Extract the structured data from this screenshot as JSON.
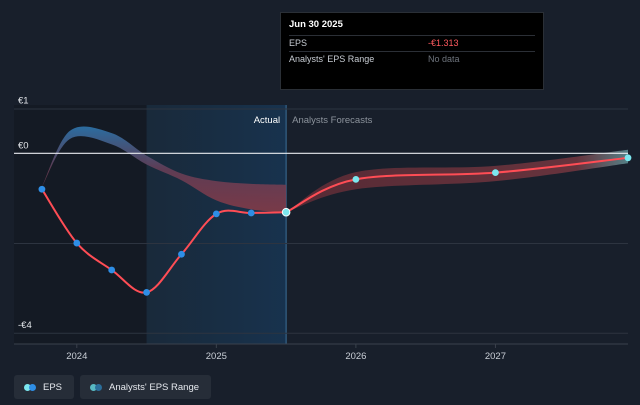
{
  "tooltip": {
    "date": "Jun 30 2025",
    "rows": [
      {
        "label": "EPS",
        "value": "-€1.313"
      },
      {
        "label": "Analysts' EPS Range",
        "value": "No data"
      }
    ]
  },
  "legend": {
    "items": [
      {
        "label": "EPS",
        "colors": [
          "#7ce7ef",
          "#2e8ee6"
        ]
      },
      {
        "label": "Analysts' EPS Range",
        "colors": [
          "#58b9c2",
          "#2b6e9a"
        ]
      }
    ]
  },
  "chart_data": {
    "type": "line",
    "y_ticks": [
      {
        "value": 1,
        "label": "€1"
      },
      {
        "value": 0,
        "label": "€0"
      },
      {
        "value": -4,
        "label": "-€4"
      }
    ],
    "x_ticks": [
      {
        "value": 2024.0,
        "label": "2024"
      },
      {
        "value": 2025.0,
        "label": "2025"
      },
      {
        "value": 2026.0,
        "label": "2026"
      },
      {
        "value": 2027.0,
        "label": "2027"
      }
    ],
    "xlim": [
      2023.55,
      2027.95
    ],
    "ylim": [
      -4.25,
      1.3
    ],
    "region_labels": {
      "actual": "Actual",
      "forecast": "Analysts Forecasts"
    },
    "actual_boundary": 2025.5,
    "highlight_start": 2024.5,
    "eps_series": {
      "name": "EPS",
      "x": [
        2023.75,
        2024.0,
        2024.25,
        2024.5,
        2024.75,
        2025.0,
        2025.25,
        2025.5
      ],
      "y": [
        -0.8,
        -2.0,
        -2.6,
        -3.1,
        -2.25,
        -1.35,
        -1.33,
        -1.313
      ]
    },
    "forecast_series": {
      "name": "EPS Forecast",
      "x": [
        2025.5,
        2026.0,
        2027.0,
        2027.95
      ],
      "y": [
        -1.313,
        -0.58,
        -0.43,
        -0.1
      ]
    },
    "range_band": {
      "x": [
        2023.75,
        2023.95,
        2024.25,
        2024.5,
        2024.75,
        2025.0,
        2025.25,
        2025.5
      ],
      "high": [
        -0.75,
        0.5,
        0.45,
        -0.05,
        -0.45,
        -0.62,
        -0.68,
        -0.7
      ],
      "low": [
        -0.75,
        0.32,
        0.2,
        -0.25,
        -0.6,
        -1.05,
        -1.25,
        -1.313
      ]
    },
    "forecast_band": {
      "x": [
        2025.5,
        2026.0,
        2027.0,
        2027.95
      ],
      "high": [
        -1.313,
        -0.42,
        -0.28,
        0.08
      ],
      "low": [
        -1.313,
        -0.8,
        -0.62,
        -0.22
      ]
    }
  }
}
